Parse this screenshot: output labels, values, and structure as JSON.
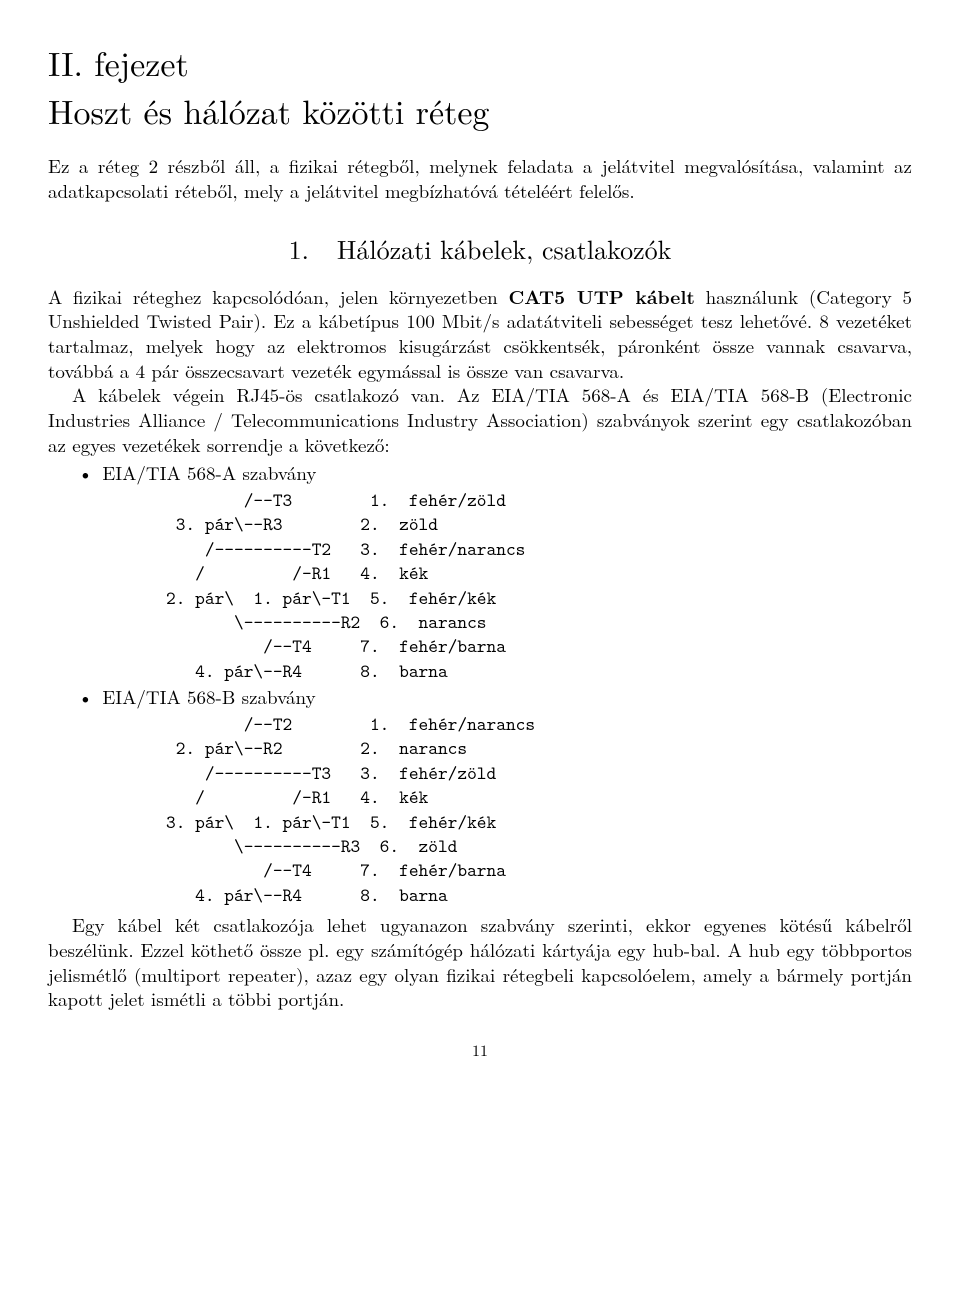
{
  "chapter": {
    "label": "II. fejezet",
    "title": "Hoszt és hálózat közötti réteg"
  },
  "intro": "Ez a réteg 2 részből áll, a fizikai rétegből, melynek feladata a jelátvitel megvalósítása, valamint az adatkapcsolati réteből, mely a jelátvitel megbízhatóvá tételéért felelős.",
  "section": {
    "num": "1.",
    "title": "Hálózati kábelek, csatlakozók"
  },
  "para1_a": "A fizikai réteghez kapcsolódóan, jelen környezetben ",
  "para1_b": "CAT5 UTP kábelt",
  "para1_c": " használunk (Category 5 Unshielded Twisted Pair). Ez a kábetípus 100 Mbit/s adatátviteli sebességet tesz lehetővé. 8 vezetéket tartalmaz, melyek hogy az elektromos kisugárzást csökkentsék, páronként össze vannak csavarva, továbbá a 4 pár összecsavart vezeték egymással is össze van csavarva.",
  "para2": "A kábelek végein RJ45-ös csatlakozó van. Az EIA/TIA 568-A és EIA/TIA 568-B (Electronic Industries Alliance / Telecommunications Industry Association) szabványok szerint egy csatlakozóban az egyes vezetékek sorrendje a következő:",
  "standard_a": {
    "label": "EIA/TIA 568-A szabvány",
    "lines": [
      "        /--T3        1.  fehér/zöld",
      " 3. pár\\--R3        2.  zöld",
      "    /----------T2   3.  fehér/narancs",
      "   /         /-R1   4.  kék",
      "2. pár\\  1. pár\\-T1  5.  fehér/kék",
      "       \\----------R2  6.  narancs",
      "          /--T4     7.  fehér/barna",
      "   4. pár\\--R4      8.  barna"
    ]
  },
  "standard_b": {
    "label": "EIA/TIA 568-B szabvány",
    "lines": [
      "        /--T2        1.  fehér/narancs",
      " 2. pár\\--R2        2.  narancs",
      "    /----------T3   3.  fehér/zöld",
      "   /         /-R1   4.  kék",
      "3. pár\\  1. pár\\-T1  5.  fehér/kék",
      "       \\----------R3  6.  zöld",
      "          /--T4     7.  fehér/barna",
      "   4. pár\\--R4      8.  barna"
    ]
  },
  "closing": "Egy kábel két csatlakozója lehet ugyanazon szabvány szerinti, ekkor egyenes kötésű kábelről beszélünk. Ezzel köthető össze pl. egy számítógép hálózati kártyája egy hub-bal. A hub egy többportos jelismétlő (multiport repeater), azaz egy olyan fizikai rétegbeli kapcsolóelem, amely a bármely portján kapott jelet ismétli a többi portján.",
  "pagenum": "11"
}
